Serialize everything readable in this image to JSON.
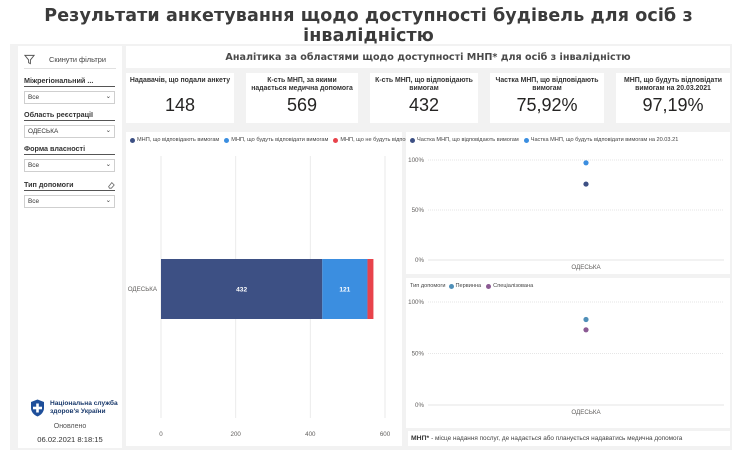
{
  "page_title": "Результати анкетування щодо доступності будівель для осіб з інвалідністю",
  "sidebar": {
    "reset_label": "Скинути фільтри",
    "filters": [
      {
        "title": "Міжрегіональний ...",
        "value": "Все"
      },
      {
        "title": "Область реєстрації",
        "value": "ОДЕСЬКА"
      },
      {
        "title": "Форма власності",
        "value": "Все"
      },
      {
        "title": "Тип допомоги",
        "value": "Все"
      }
    ],
    "logo_line1": "Національна служба",
    "logo_line2": "здоров'я України",
    "updated_label": "Оновлено",
    "updated_value": "06.02.2021 8:18:15"
  },
  "main": {
    "title": "Аналітика за областями щодо доступності МНП* для осіб з інвалідністю",
    "kpis": [
      {
        "label": "Надавачів, що подали анкету",
        "value": "148"
      },
      {
        "label": "К-сть МНП, за якими надається медична допомога",
        "value": "569"
      },
      {
        "label": "К-сть МНП, що відповідають вимогам",
        "value": "432"
      },
      {
        "label": "Частка МНП, що відповідають вимогам",
        "value": "75,92%"
      },
      {
        "label": "МНП, що будуть відповідати вимогам на 20.03.2021",
        "value": "97,19%"
      }
    ],
    "footnote_term": "МНП*",
    "footnote_text": "- місце надання послуг, де надається або планується надаватись медична допомога"
  },
  "colors": {
    "dark_blue": "#3d5084",
    "blue": "#3b8ee0",
    "red": "#e8434b",
    "teal": "#4f8fb8",
    "purple": "#8b5a93"
  },
  "chart_data": [
    {
      "type": "bar",
      "orientation": "horizontal",
      "stacked": true,
      "categories": [
        "ОДЕСЬКА"
      ],
      "series": [
        {
          "name": "МНП, що відповідають вимогам",
          "values": [
            432
          ]
        },
        {
          "name": "МНП, що будуть відповідати вимогам",
          "values": [
            121
          ]
        },
        {
          "name": "МНП, що не будуть відповідати вимогам",
          "values": [
            16
          ]
        }
      ],
      "data_labels": [
        "432",
        "121"
      ],
      "xlim": [
        0,
        600
      ],
      "xticks": [
        "0",
        "200",
        "400",
        "600"
      ],
      "legend": "top"
    },
    {
      "type": "scatter",
      "categories": [
        "ОДЕСЬКА"
      ],
      "series": [
        {
          "name": "Частка МНП, що відповідають вимогам",
          "values": [
            0.7592
          ]
        },
        {
          "name": "Частка МНП, що будуть відповідати вимогам на 20.03.21",
          "values": [
            0.9719
          ]
        }
      ],
      "ylim": [
        0,
        1
      ],
      "yticks": [
        "0%",
        "50%",
        "100%"
      ],
      "legend": "top"
    },
    {
      "type": "scatter",
      "legend_title": "Тип допомоги",
      "categories": [
        "ОДЕСЬКА"
      ],
      "series": [
        {
          "name": "Первинна",
          "values": [
            0.83
          ]
        },
        {
          "name": "Спеціалізована",
          "values": [
            0.73
          ]
        }
      ],
      "ylim": [
        0,
        1
      ],
      "yticks": [
        "0%",
        "50%",
        "100%"
      ],
      "legend": "top"
    }
  ]
}
